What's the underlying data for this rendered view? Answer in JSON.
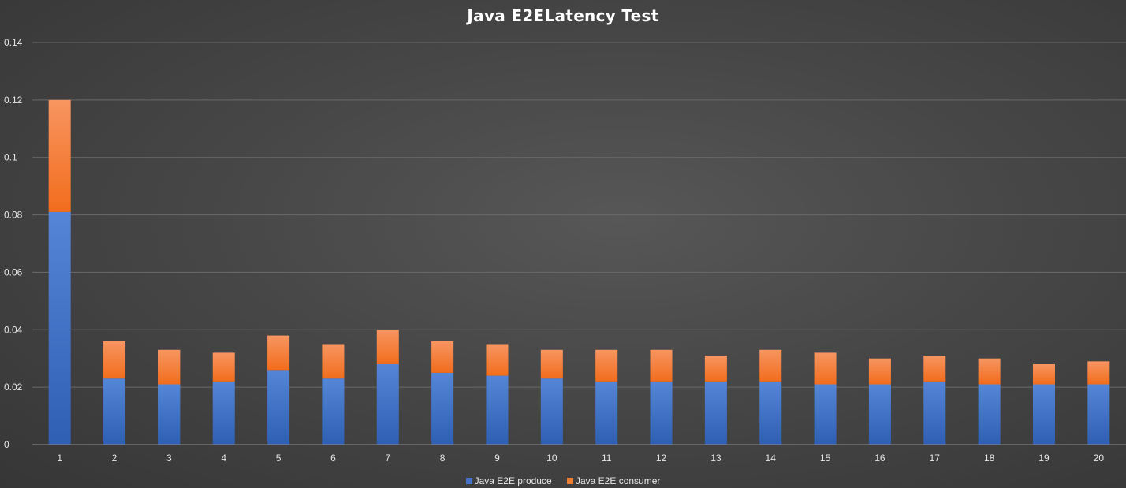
{
  "chart_data": {
    "type": "bar",
    "stacked": true,
    "title": "Java E2ELatency Test",
    "xlabel": "",
    "ylabel": "",
    "ylim": [
      0,
      0.14
    ],
    "yticks": [
      "0",
      "0.02",
      "0.04",
      "0.06",
      "0.08",
      "0.1",
      "0.12",
      "0.14"
    ],
    "categories": [
      "1",
      "2",
      "3",
      "4",
      "5",
      "6",
      "7",
      "8",
      "9",
      "10",
      "11",
      "12",
      "13",
      "14",
      "15",
      "16",
      "17",
      "18",
      "19",
      "20"
    ],
    "series": [
      {
        "name": "Java E2E produce",
        "color": "#4472c4",
        "values": [
          0.081,
          0.023,
          0.021,
          0.022,
          0.026,
          0.023,
          0.028,
          0.025,
          0.024,
          0.023,
          0.022,
          0.022,
          0.022,
          0.022,
          0.021,
          0.021,
          0.022,
          0.021,
          0.021,
          0.021
        ]
      },
      {
        "name": "Java E2E consumer",
        "color": "#ed7d31",
        "values": [
          0.039,
          0.013,
          0.012,
          0.01,
          0.012,
          0.012,
          0.012,
          0.011,
          0.011,
          0.01,
          0.011,
          0.011,
          0.009,
          0.011,
          0.011,
          0.009,
          0.009,
          0.009,
          0.007,
          0.008
        ]
      }
    ],
    "grid": true,
    "legend_position": "bottom"
  }
}
